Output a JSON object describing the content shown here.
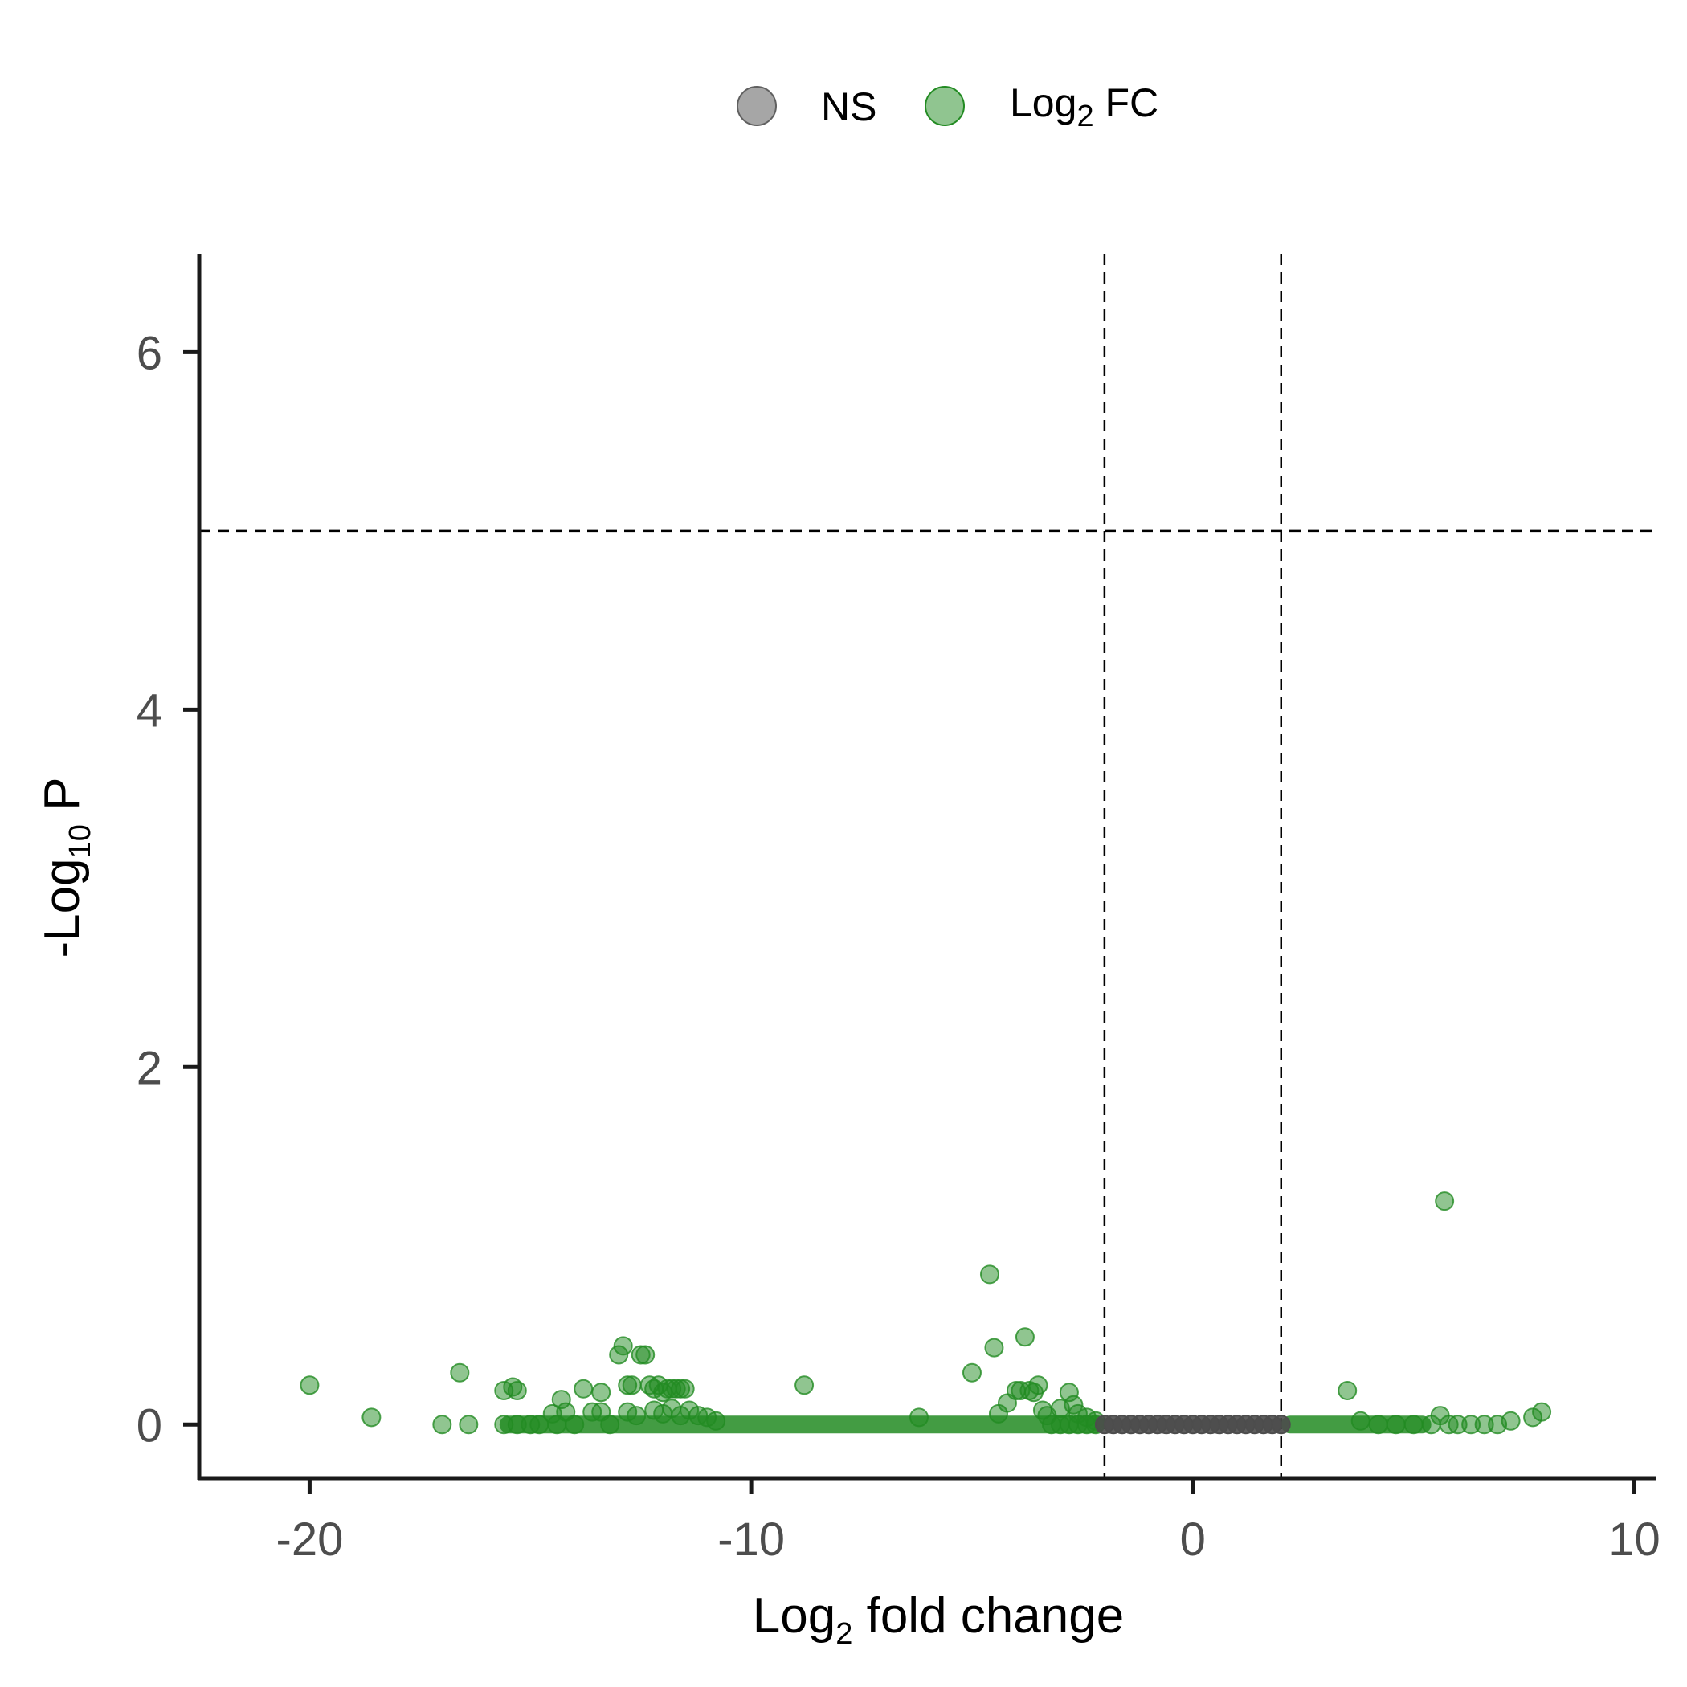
{
  "chart_data": {
    "type": "scatter",
    "xlabel": {
      "main": "Log",
      "sub": "2",
      "rest": " fold change"
    },
    "ylabel": {
      "main": "-Log",
      "sub": "10",
      "rest": " P"
    },
    "xlim": [
      -22.5,
      10.5
    ],
    "ylim": [
      -0.3,
      6.55
    ],
    "x_ticks": [
      -20,
      -10,
      0,
      10
    ],
    "x_tick_labels": [
      "-20",
      "-10",
      "0",
      "10"
    ],
    "y_ticks": [
      0,
      2,
      4,
      6
    ],
    "y_tick_labels": [
      "0",
      "2",
      "4",
      "6"
    ],
    "grid": false,
    "legend": {
      "position": "top",
      "items": [
        {
          "key": "ns",
          "label": "NS",
          "color": "#808080"
        },
        {
          "key": "fc",
          "label": "Log",
          "sub": "2",
          "rest": " FC",
          "color": "#228B22"
        }
      ]
    },
    "thresholds": {
      "fc_cutoff": [
        -2,
        2
      ],
      "p_cutoff_neglog10": 5
    },
    "colors": {
      "fc": "#228B22",
      "ns": "#4d4d4d",
      "axis": "#1a1a1a",
      "threshold": "#000000"
    },
    "series": [
      {
        "name": "NS",
        "color": "#4d4d4d",
        "points": [
          [
            -2.0,
            0
          ],
          [
            -1.8,
            0
          ],
          [
            -1.6,
            0
          ],
          [
            -1.4,
            0
          ],
          [
            -1.2,
            0
          ],
          [
            -1.0,
            0
          ],
          [
            -0.8,
            0
          ],
          [
            -0.6,
            0
          ],
          [
            -0.4,
            0
          ],
          [
            -0.2,
            0
          ],
          [
            0.0,
            0
          ],
          [
            0.2,
            0
          ],
          [
            0.4,
            0
          ],
          [
            0.6,
            0
          ],
          [
            0.8,
            0
          ],
          [
            1.0,
            0
          ],
          [
            1.2,
            0
          ],
          [
            1.4,
            0
          ],
          [
            1.6,
            0
          ],
          [
            1.8,
            0
          ],
          [
            2.0,
            0
          ]
        ]
      },
      {
        "name": "Log2 FC",
        "color": "#228B22",
        "points": [
          [
            -20.0,
            0.22
          ],
          [
            -18.6,
            0.04
          ],
          [
            -17.0,
            0.0
          ],
          [
            -16.6,
            0.29
          ],
          [
            -16.4,
            0.0
          ],
          [
            -15.6,
            0.19
          ],
          [
            -15.4,
            0.21
          ],
          [
            -15.3,
            0.19
          ],
          [
            -15.6,
            0.0
          ],
          [
            -15.3,
            0.0
          ],
          [
            -15.0,
            0.0
          ],
          [
            -14.8,
            0.0
          ],
          [
            -14.5,
            0.06
          ],
          [
            -14.3,
            0.14
          ],
          [
            -14.2,
            0.07
          ],
          [
            -14.4,
            0.0
          ],
          [
            -14.0,
            0.0
          ],
          [
            -13.8,
            0.2
          ],
          [
            -13.6,
            0.07
          ],
          [
            -13.4,
            0.18
          ],
          [
            -13.4,
            0.07
          ],
          [
            -13.2,
            0.0
          ],
          [
            -13.0,
            0.39
          ],
          [
            -12.9,
            0.44
          ],
          [
            -12.8,
            0.22
          ],
          [
            -12.8,
            0.07
          ],
          [
            -12.7,
            0.22
          ],
          [
            -12.6,
            0.05
          ],
          [
            -12.5,
            0.39
          ],
          [
            -12.4,
            0.39
          ],
          [
            -12.3,
            0.22
          ],
          [
            -12.2,
            0.2
          ],
          [
            -12.1,
            0.22
          ],
          [
            -12.0,
            0.18
          ],
          [
            -11.9,
            0.2
          ],
          [
            -11.8,
            0.2
          ],
          [
            -11.7,
            0.2
          ],
          [
            -11.6,
            0.2
          ],
          [
            -11.5,
            0.2
          ],
          [
            -12.2,
            0.08
          ],
          [
            -12.0,
            0.06
          ],
          [
            -11.8,
            0.09
          ],
          [
            -11.6,
            0.05
          ],
          [
            -11.4,
            0.08
          ],
          [
            -11.2,
            0.05
          ],
          [
            -11.0,
            0.04
          ],
          [
            -10.8,
            0.02
          ],
          [
            -8.8,
            0.22
          ],
          [
            -6.2,
            0.04
          ],
          [
            -5.0,
            0.29
          ],
          [
            -4.6,
            0.84
          ],
          [
            -4.5,
            0.43
          ],
          [
            -4.4,
            0.06
          ],
          [
            -4.2,
            0.12
          ],
          [
            -3.8,
            0.49
          ],
          [
            -4.0,
            0.19
          ],
          [
            -3.9,
            0.19
          ],
          [
            -3.7,
            0.19
          ],
          [
            -3.6,
            0.18
          ],
          [
            -3.5,
            0.22
          ],
          [
            -3.4,
            0.08
          ],
          [
            -3.3,
            0.05
          ],
          [
            -3.0,
            0.09
          ],
          [
            -2.8,
            0.18
          ],
          [
            -2.7,
            0.11
          ],
          [
            -2.6,
            0.06
          ],
          [
            -2.4,
            0.04
          ],
          [
            -2.2,
            0.02
          ],
          [
            -3.2,
            0.0
          ],
          [
            -3.0,
            0.0
          ],
          [
            -2.8,
            0.0
          ],
          [
            -2.6,
            0.0
          ],
          [
            -2.4,
            0.0
          ],
          [
            -2.2,
            0.0
          ],
          [
            3.5,
            0.19
          ],
          [
            3.8,
            0.02
          ],
          [
            4.2,
            0.0
          ],
          [
            4.6,
            0.0
          ],
          [
            5.0,
            0.0
          ],
          [
            5.4,
            0.0
          ],
          [
            5.7,
            1.25
          ],
          [
            5.6,
            0.05
          ],
          [
            5.8,
            0.0
          ],
          [
            6.0,
            0.0
          ],
          [
            6.3,
            0.0
          ],
          [
            6.6,
            0.0
          ],
          [
            6.9,
            0.0
          ],
          [
            7.2,
            0.02
          ],
          [
            7.7,
            0.04
          ],
          [
            7.9,
            0.07
          ]
        ],
        "bands": [
          {
            "x_from": -15.5,
            "x_to": -2.2,
            "y": 0.0
          },
          {
            "x_from": 2.2,
            "x_to": 5.2,
            "y": 0.0
          }
        ]
      }
    ]
  }
}
